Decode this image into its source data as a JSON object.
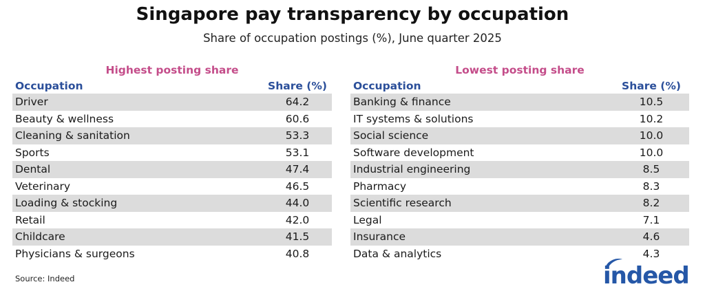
{
  "title": "Singapore pay transparency by occupation",
  "subtitle": "Share of occupation postings (%), June quarter 2025",
  "source": "Source: Indeed",
  "logo_text": "indeed",
  "colors": {
    "heading": "#c44d8a",
    "column_header": "#2b4f9a",
    "row_shade": "#dcdcdc",
    "logo": "#2557a7"
  },
  "chart_data": {
    "type": "table",
    "tables": [
      {
        "heading": "Highest posting share",
        "columns": [
          "Occupation",
          "Share (%)"
        ],
        "rows": [
          {
            "occupation": "Driver",
            "share": "64.2"
          },
          {
            "occupation": "Beauty & wellness",
            "share": "60.6"
          },
          {
            "occupation": "Cleaning & sanitation",
            "share": "53.3"
          },
          {
            "occupation": "Sports",
            "share": "53.1"
          },
          {
            "occupation": "Dental",
            "share": "47.4"
          },
          {
            "occupation": "Veterinary",
            "share": "46.5"
          },
          {
            "occupation": "Loading & stocking",
            "share": "44.0"
          },
          {
            "occupation": "Retail",
            "share": "42.0"
          },
          {
            "occupation": "Childcare",
            "share": "41.5"
          },
          {
            "occupation": "Physicians & surgeons",
            "share": "40.8"
          }
        ]
      },
      {
        "heading": "Lowest posting share",
        "columns": [
          "Occupation",
          "Share (%)"
        ],
        "rows": [
          {
            "occupation": "Banking & finance",
            "share": "10.5"
          },
          {
            "occupation": "IT systems & solutions",
            "share": "10.2"
          },
          {
            "occupation": "Social science",
            "share": "10.0"
          },
          {
            "occupation": "Software development",
            "share": "10.0"
          },
          {
            "occupation": "Industrial engineering",
            "share": "8.5"
          },
          {
            "occupation": "Pharmacy",
            "share": "8.3"
          },
          {
            "occupation": "Scientific research",
            "share": "8.2"
          },
          {
            "occupation": "Legal",
            "share": "7.1"
          },
          {
            "occupation": "Insurance",
            "share": "4.6"
          },
          {
            "occupation": "Data & analytics",
            "share": "4.3"
          }
        ]
      }
    ]
  }
}
